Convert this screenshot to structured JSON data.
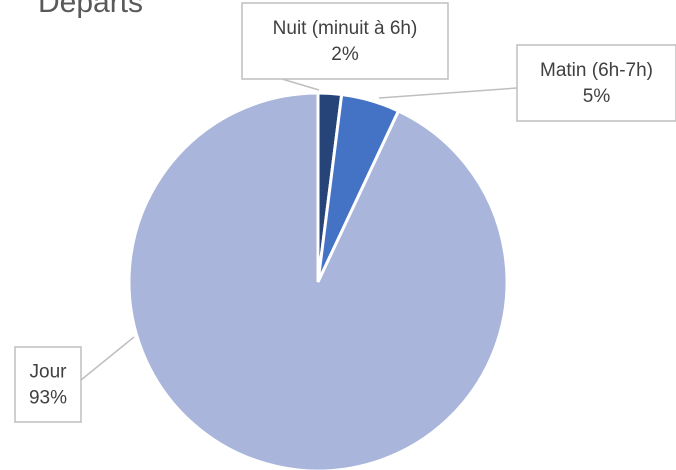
{
  "chart_data": {
    "type": "pie",
    "title": "Départs",
    "slices": [
      {
        "label": "Nuit (minuit à 6h)",
        "value": 2,
        "value_label": "2%",
        "color": "#264478"
      },
      {
        "label": "Matin (6h-7h)",
        "value": 5,
        "value_label": "5%",
        "color": "#4472C4"
      },
      {
        "label": "Jour",
        "value": 93,
        "value_label": "93%",
        "color": "#A9B5DA"
      }
    ],
    "start_angle": "12 o'clock",
    "direction": "clockwise",
    "legend": "none",
    "data_labels": "callouts"
  }
}
